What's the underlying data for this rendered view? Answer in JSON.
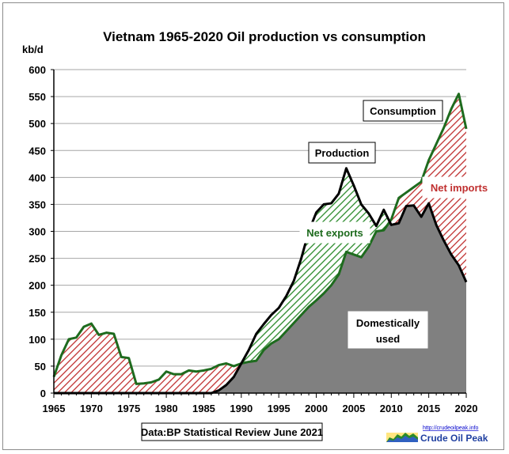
{
  "chart_data": {
    "type": "area",
    "title": "Vietnam  1965-2020 Oil production  vs consumption",
    "ylabel": "kb/d",
    "xlabel": "",
    "ylim": [
      0,
      600
    ],
    "xlim": [
      1965,
      2020
    ],
    "yticks": [
      "0",
      "50",
      "100",
      "150",
      "200",
      "250",
      "300",
      "350",
      "400",
      "450",
      "500",
      "550",
      "600"
    ],
    "xticks": [
      "1965",
      "1970",
      "1975",
      "1980",
      "1985",
      "1990",
      "1995",
      "2000",
      "2005",
      "2010",
      "2015",
      "2020"
    ],
    "grid": true,
    "years": [
      1965,
      1966,
      1967,
      1968,
      1969,
      1970,
      1971,
      1972,
      1973,
      1974,
      1975,
      1976,
      1977,
      1978,
      1979,
      1980,
      1981,
      1982,
      1983,
      1984,
      1985,
      1986,
      1987,
      1988,
      1989,
      1990,
      1991,
      1992,
      1993,
      1994,
      1995,
      1996,
      1997,
      1998,
      1999,
      2000,
      2001,
      2002,
      2003,
      2004,
      2005,
      2006,
      2007,
      2008,
      2009,
      2010,
      2011,
      2012,
      2013,
      2014,
      2015,
      2016,
      2017,
      2018,
      2019,
      2020
    ],
    "series": [
      {
        "name": "Production",
        "color": "#000000",
        "values": [
          0,
          0,
          0,
          0,
          0,
          0,
          0,
          0,
          0,
          0,
          0,
          0,
          0,
          0,
          0,
          0,
          0,
          0,
          0,
          0,
          0,
          0,
          5,
          15,
          30,
          55,
          80,
          110,
          128,
          145,
          158,
          180,
          208,
          250,
          300,
          335,
          350,
          352,
          370,
          417,
          385,
          350,
          333,
          310,
          340,
          312,
          315,
          347,
          348,
          327,
          352,
          312,
          283,
          257,
          237,
          206
        ]
      },
      {
        "name": "Consumption",
        "color": "#1e6b1e",
        "values": [
          30,
          70,
          100,
          103,
          123,
          129,
          108,
          112,
          110,
          67,
          65,
          17,
          18,
          20,
          25,
          40,
          35,
          35,
          42,
          40,
          42,
          45,
          52,
          55,
          50,
          55,
          58,
          60,
          80,
          92,
          100,
          115,
          130,
          145,
          160,
          172,
          185,
          200,
          220,
          262,
          257,
          252,
          272,
          300,
          302,
          322,
          362,
          372,
          382,
          392,
          432,
          462,
          492,
          527,
          555,
          490
        ]
      }
    ],
    "fills": {
      "net_imports_color": "#c03030",
      "net_exports_color": "#2a8a2a",
      "domestic_color": "#808080"
    },
    "annotations": {
      "consumption": "Consumption",
      "production": "Production",
      "net_imports": "Net imports",
      "net_exports": "Net exports",
      "domestic_1": "Domestically",
      "domestic_2": "used"
    },
    "source": "Data:BP Statistical Review June 2021",
    "logo_url": "http://crudeoilpeak.info",
    "logo_name": "Crude Oil Peak"
  }
}
